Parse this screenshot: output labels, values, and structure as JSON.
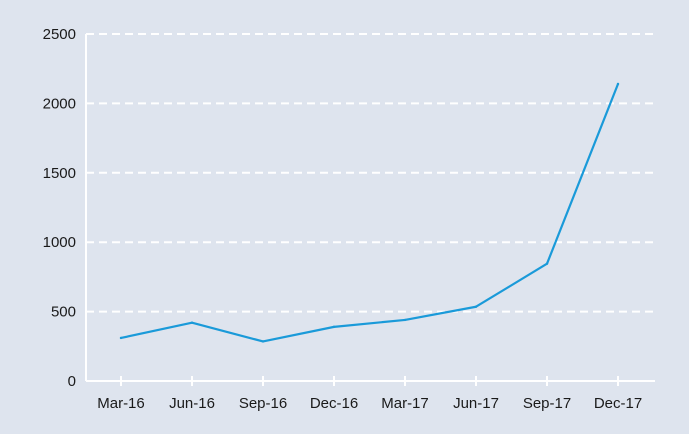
{
  "colors": {
    "background": "#dee4ee",
    "line": "#1a9ad9",
    "grid": "#ffffff",
    "axis": "#ffffff",
    "text": "#1a1a1a"
  },
  "chart_data": {
    "type": "line",
    "title": "",
    "xlabel": "",
    "ylabel": "",
    "categories": [
      "Mar-16",
      "Jun-16",
      "Sep-16",
      "Dec-16",
      "Mar-17",
      "Jun-17",
      "Sep-17",
      "Dec-17"
    ],
    "values": [
      310,
      420,
      285,
      390,
      440,
      535,
      845,
      2140
    ],
    "ylim": [
      0,
      2500
    ],
    "yticks": [
      0,
      500,
      1000,
      1500,
      2000,
      2500
    ],
    "grid": true,
    "grid_style": "dashed",
    "legend": "none"
  }
}
